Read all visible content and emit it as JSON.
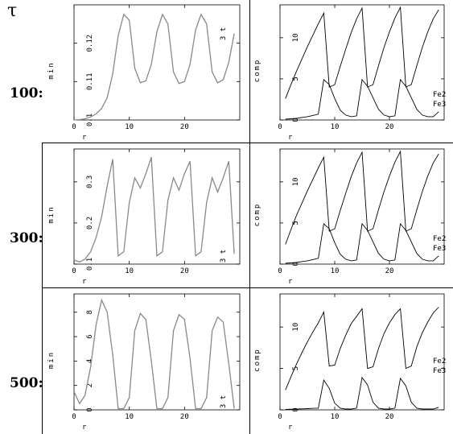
{
  "symbol": "τ",
  "rows": [
    {
      "label": "100:"
    },
    {
      "label": "300:"
    },
    {
      "label": "500:"
    }
  ],
  "colors": {
    "left_line": "#888888",
    "right_line": "#000000",
    "axis": "#000000",
    "frame": "#000000"
  },
  "chart_data": [
    {
      "type": "line",
      "panel": "row1-left",
      "xlabel": "r",
      "ylabel": "min",
      "xlim": [
        0,
        30
      ],
      "ylim": [
        0.1,
        0.13
      ],
      "xticks": [
        0,
        10,
        20
      ],
      "yticks": [
        0.1,
        0.11,
        0.12
      ],
      "ytick_labels": [
        "0.1",
        "0.11",
        "0.12"
      ],
      "grid": false,
      "legend": {
        "entries": [
          "3 t"
        ],
        "placement": "top-right"
      },
      "series": [
        {
          "values_x": [
            0,
            1,
            2,
            3,
            4,
            5,
            6,
            7,
            8,
            9,
            10,
            11,
            12,
            13,
            14,
            15,
            16,
            17,
            18,
            19,
            20,
            21,
            22,
            23,
            24,
            25,
            26,
            27,
            28,
            29
          ],
          "values_y": [
            0.1,
            0.1001,
            0.1003,
            0.1008,
            0.1016,
            0.103,
            0.1058,
            0.112,
            0.122,
            0.1275,
            0.126,
            0.1135,
            0.1097,
            0.1102,
            0.1145,
            0.123,
            0.1275,
            0.125,
            0.1125,
            0.1095,
            0.11,
            0.1145,
            0.1235,
            0.1275,
            0.125,
            0.1125,
            0.1097,
            0.1105,
            0.115,
            0.1225
          ]
        }
      ]
    },
    {
      "type": "line",
      "panel": "row1-right",
      "xlabel": "r",
      "ylabel": "comp",
      "xlim": [
        0,
        30
      ],
      "ylim": [
        0,
        14
      ],
      "xticks": [
        0,
        10,
        20
      ],
      "yticks": [
        0,
        5,
        10
      ],
      "ytick_labels": [
        "0",
        "5",
        "10"
      ],
      "grid": false,
      "legend": {
        "entries": [
          "Fe2",
          "Fe3"
        ],
        "placement": "right"
      },
      "series": [
        {
          "values_x": [
            1,
            2,
            3,
            4,
            5,
            6,
            7,
            8,
            9,
            10,
            11,
            12,
            13,
            14,
            15,
            16,
            17,
            18,
            19,
            20,
            21,
            22,
            23,
            24,
            25,
            26,
            27,
            28,
            29
          ],
          "values_y": [
            2.6,
            4.3,
            5.9,
            7.4,
            8.9,
            10.3,
            11.7,
            13.0,
            4.0,
            4.3,
            6.5,
            8.6,
            10.6,
            12.3,
            13.6,
            4.0,
            4.3,
            6.6,
            8.8,
            10.7,
            12.4,
            13.7,
            4.0,
            4.3,
            6.6,
            8.8,
            10.7,
            12.3,
            13.4
          ]
        },
        {
          "values_x": [
            1,
            2,
            3,
            4,
            5,
            6,
            7,
            8,
            9,
            10,
            11,
            12,
            13,
            14,
            15,
            16,
            17,
            18,
            19,
            20,
            21,
            22,
            23,
            24,
            25,
            26,
            27,
            28,
            29
          ],
          "values_y": [
            0.1,
            0.15,
            0.2,
            0.3,
            0.4,
            0.55,
            0.7,
            4.9,
            4.3,
            2.6,
            1.2,
            0.6,
            0.4,
            0.5,
            4.9,
            4.1,
            2.7,
            1.3,
            0.6,
            0.4,
            0.5,
            4.9,
            4.1,
            2.7,
            1.3,
            0.6,
            0.4,
            0.4,
            1.0
          ]
        }
      ]
    },
    {
      "type": "line",
      "panel": "row2-left",
      "xlabel": "r",
      "ylabel": "min",
      "xlim": [
        0,
        30
      ],
      "ylim": [
        0.1,
        0.38
      ],
      "xticks": [
        0,
        10,
        20
      ],
      "yticks": [
        0.1,
        0.2,
        0.3
      ],
      "ytick_labels": [
        "0.1",
        "0.2",
        "0.3"
      ],
      "grid": false,
      "legend": {
        "entries": [
          "3 t"
        ],
        "placement": "bottom-right"
      },
      "series": [
        {
          "values_x": [
            0,
            1,
            2,
            3,
            4,
            5,
            6,
            7,
            8,
            9,
            10,
            11,
            12,
            13,
            14,
            15,
            16,
            17,
            18,
            19,
            20,
            21,
            22,
            23,
            24,
            25,
            26,
            27,
            28,
            29
          ],
          "values_y": [
            0.11,
            0.105,
            0.112,
            0.13,
            0.165,
            0.215,
            0.29,
            0.355,
            0.12,
            0.13,
            0.25,
            0.31,
            0.285,
            0.32,
            0.36,
            0.12,
            0.13,
            0.255,
            0.31,
            0.28,
            0.32,
            0.35,
            0.12,
            0.13,
            0.25,
            0.31,
            0.275,
            0.31,
            0.35,
            0.125
          ]
        }
      ]
    },
    {
      "type": "line",
      "panel": "row2-right",
      "xlabel": "r",
      "ylabel": "comp",
      "xlim": [
        0,
        30
      ],
      "ylim": [
        0,
        14
      ],
      "xticks": [
        0,
        10,
        20
      ],
      "yticks": [
        0,
        5,
        10
      ],
      "ytick_labels": [
        "0",
        "5",
        "10"
      ],
      "grid": false,
      "legend": {
        "entries": [
          "Fe2",
          "Fe3"
        ],
        "placement": "right"
      },
      "series": [
        {
          "values_x": [
            1,
            2,
            3,
            4,
            5,
            6,
            7,
            8,
            9,
            10,
            11,
            12,
            13,
            14,
            15,
            16,
            17,
            18,
            19,
            20,
            21,
            22,
            23,
            24,
            25,
            26,
            27,
            28,
            29
          ],
          "values_y": [
            2.4,
            4.2,
            5.9,
            7.4,
            8.9,
            10.3,
            11.7,
            13.0,
            4.0,
            4.3,
            6.5,
            8.6,
            10.6,
            12.3,
            13.6,
            4.0,
            4.3,
            6.6,
            8.8,
            10.7,
            12.4,
            13.7,
            4.0,
            4.3,
            6.6,
            8.8,
            10.7,
            12.3,
            13.4
          ]
        },
        {
          "values_x": [
            1,
            2,
            3,
            4,
            5,
            6,
            7,
            8,
            9,
            10,
            11,
            12,
            13,
            14,
            15,
            16,
            17,
            18,
            19,
            20,
            21,
            22,
            23,
            24,
            25,
            26,
            27,
            28,
            29
          ],
          "values_y": [
            0.1,
            0.15,
            0.2,
            0.3,
            0.4,
            0.55,
            0.7,
            4.9,
            4.3,
            2.6,
            1.2,
            0.6,
            0.4,
            0.5,
            4.9,
            4.1,
            2.7,
            1.3,
            0.6,
            0.4,
            0.5,
            4.9,
            4.1,
            2.7,
            1.3,
            0.6,
            0.4,
            0.4,
            1.0
          ]
        }
      ]
    },
    {
      "type": "line",
      "panel": "row3-left",
      "xlabel": "r",
      "ylabel": "min",
      "xlim": [
        0,
        30
      ],
      "ylim": [
        0,
        9.5
      ],
      "xticks": [
        0,
        10,
        20
      ],
      "yticks": [
        0,
        2,
        4,
        6,
        8
      ],
      "ytick_labels": [
        "0",
        "2",
        "4",
        "6",
        "8"
      ],
      "grid": false,
      "legend": {
        "entries": [
          "3 t"
        ],
        "placement": "bottom-right"
      },
      "series": [
        {
          "values_x": [
            0,
            1,
            2,
            3,
            4,
            5,
            6,
            7,
            8,
            9,
            10,
            11,
            12,
            13,
            14,
            15,
            16,
            17,
            18,
            19,
            20,
            21,
            22,
            23,
            24,
            25,
            26,
            27,
            28,
            29
          ],
          "values_y": [
            1.5,
            0.5,
            1.2,
            3.5,
            7.0,
            9.0,
            8.0,
            4.5,
            0.1,
            0.1,
            1.0,
            6.5,
            7.9,
            7.4,
            4.0,
            0.1,
            0.1,
            1.0,
            6.5,
            7.8,
            7.4,
            4.2,
            0.1,
            0.1,
            1.0,
            6.5,
            7.6,
            7.2,
            3.8,
            0.1
          ]
        }
      ]
    },
    {
      "type": "line",
      "panel": "row3-right",
      "xlabel": "r",
      "ylabel": "comp",
      "xlim": [
        0,
        30
      ],
      "ylim": [
        0,
        14
      ],
      "xticks": [
        0,
        10,
        20
      ],
      "yticks": [
        0,
        5,
        10
      ],
      "ytick_labels": [
        "0",
        "5",
        "10"
      ],
      "grid": false,
      "legend": {
        "entries": [
          "Fe2",
          "Fe3"
        ],
        "placement": "right"
      },
      "series": [
        {
          "values_x": [
            1,
            2,
            3,
            4,
            5,
            6,
            7,
            8,
            9,
            10,
            11,
            12,
            13,
            14,
            15,
            16,
            17,
            18,
            19,
            20,
            21,
            22,
            23,
            24,
            25,
            26,
            27,
            28,
            29
          ],
          "values_y": [
            2.4,
            4.0,
            5.5,
            6.9,
            8.2,
            9.4,
            10.5,
            11.8,
            5.3,
            5.4,
            7.4,
            9.0,
            10.4,
            11.3,
            12.2,
            5.0,
            5.2,
            7.4,
            9.2,
            10.5,
            11.5,
            12.2,
            5.0,
            5.3,
            7.6,
            9.3,
            10.6,
            11.7,
            12.4
          ]
        },
        {
          "values_x": [
            1,
            2,
            3,
            4,
            5,
            6,
            7,
            8,
            9,
            10,
            11,
            12,
            13,
            14,
            15,
            16,
            17,
            18,
            19,
            20,
            21,
            22,
            23,
            24,
            25,
            26,
            27,
            28,
            29
          ],
          "values_y": [
            0.05,
            0.08,
            0.1,
            0.12,
            0.15,
            0.18,
            0.2,
            3.6,
            2.6,
            0.8,
            0.2,
            0.1,
            0.1,
            0.2,
            3.9,
            3.0,
            0.9,
            0.2,
            0.1,
            0.1,
            0.2,
            3.8,
            2.9,
            0.9,
            0.2,
            0.1,
            0.1,
            0.1,
            0.3
          ]
        }
      ]
    }
  ]
}
